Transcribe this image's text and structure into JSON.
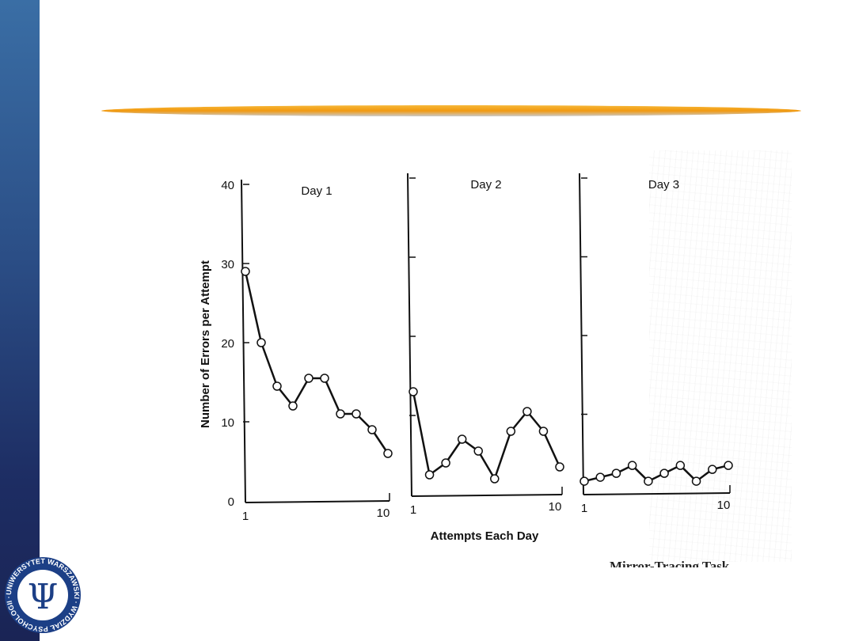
{
  "slide": {
    "accent_bar_color": "#f29a10",
    "sidebar_color": "#1d2d63",
    "logo": {
      "ring_text": "UNIWERSYTET WARSZAWSKI · WYDZIAŁ PSYCHOLOGII ·",
      "symbol": "Ψ"
    },
    "caption_fragment": "Mirror-Tracing Task"
  },
  "chart_data": {
    "type": "line",
    "ylabel": "Number of Errors per Attempt",
    "xlabel": "Attempts Each Day",
    "ylim": [
      0,
      40
    ],
    "yticks": [
      0,
      10,
      20,
      30,
      40
    ],
    "panels": [
      {
        "title": "Day 1",
        "x_first": "1",
        "x_last": "10",
        "x": [
          1,
          2,
          3,
          4,
          5,
          6,
          7,
          8,
          9,
          10
        ],
        "values": [
          29,
          20,
          14.5,
          12,
          15.5,
          15.5,
          11,
          11,
          9,
          6
        ]
      },
      {
        "title": "Day 2",
        "x_first": "1",
        "x_last": "10",
        "x": [
          1,
          2,
          3,
          4,
          5,
          6,
          7,
          8,
          9,
          10
        ],
        "values": [
          13,
          2.5,
          4,
          7,
          5.5,
          2,
          8,
          10.5,
          8,
          3.5
        ]
      },
      {
        "title": "Day 3",
        "x_first": "1",
        "x_last": "10",
        "x": [
          1,
          2,
          3,
          4,
          5,
          6,
          7,
          8,
          9,
          10
        ],
        "values": [
          1.5,
          2,
          2.5,
          3.5,
          1.5,
          2.5,
          3.5,
          1.5,
          3,
          3.5
        ]
      }
    ]
  }
}
